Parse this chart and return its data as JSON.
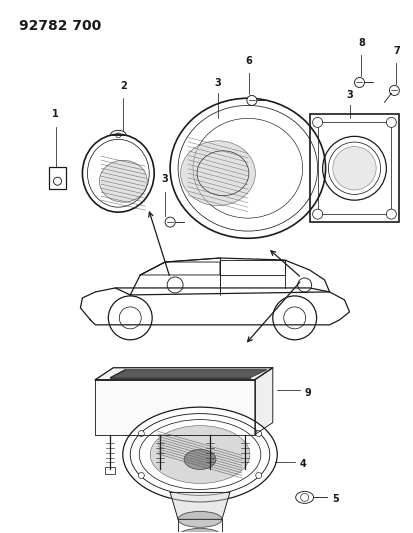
{
  "title": "92782 700",
  "bg_color": "#ffffff",
  "line_color": "#1a1a1a",
  "title_fontsize": 10,
  "fig_width": 4.13,
  "fig_height": 5.33,
  "dpi": 100
}
